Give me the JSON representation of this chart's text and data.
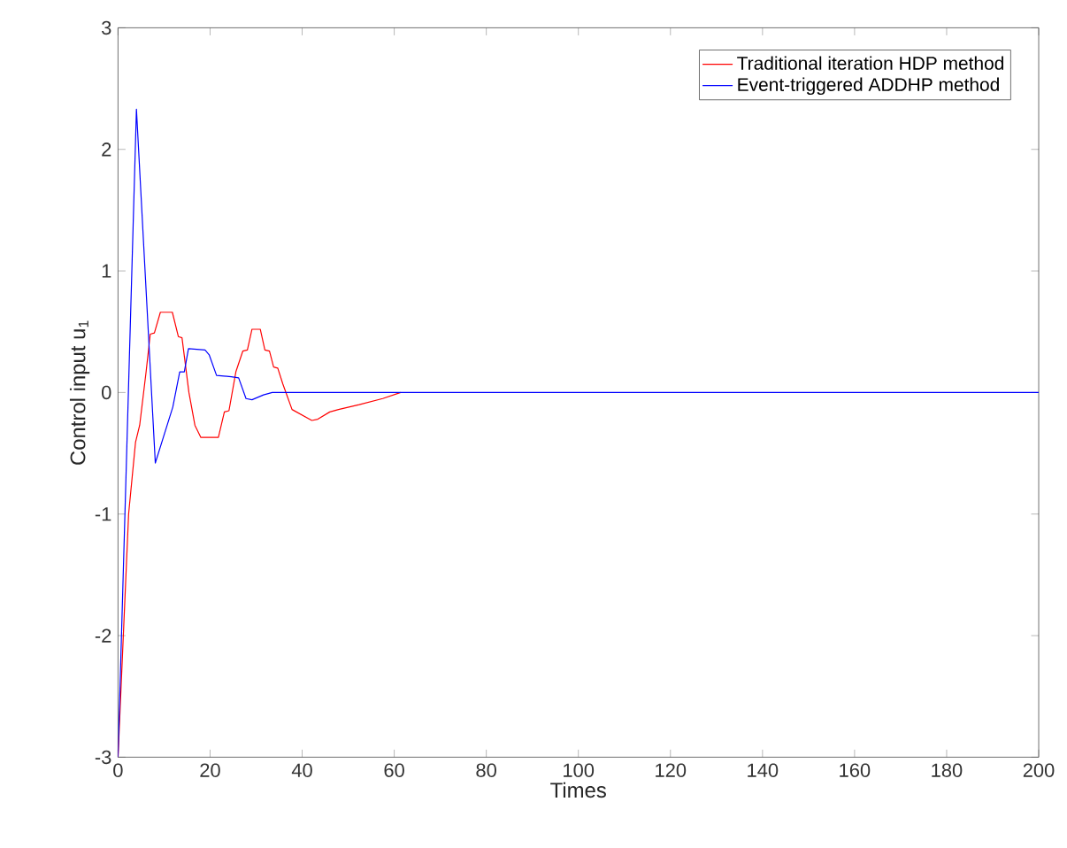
{
  "chart_data": {
    "type": "line",
    "xlabel": "Times",
    "ylabel": "Control  input  u$_{1}$",
    "xlim": [
      0,
      200
    ],
    "ylim": [
      -3,
      3
    ],
    "xticks": [
      0,
      20,
      40,
      60,
      80,
      100,
      120,
      140,
      160,
      180,
      200
    ],
    "yticks": [
      -3,
      -2,
      -1,
      0,
      1,
      2,
      3
    ],
    "grid": false,
    "legend": "top right",
    "line_style": "solid",
    "marker": "none",
    "series": [
      {
        "name": "Traditional iteration HDP method",
        "color": "#ff0000",
        "x": [
          0,
          2.3,
          3.8,
          4.7,
          6.1,
          7.0,
          7.9,
          9.2,
          11.8,
          13.1,
          13.9,
          15.4,
          16.7,
          18.0,
          21.8,
          23.1,
          24.1,
          25.6,
          27.1,
          28.1,
          29.1,
          30.9,
          31.9,
          32.9,
          33.8,
          34.7,
          35.8,
          37.8,
          42.1,
          43.4,
          46,
          47.9,
          52.4,
          57.5,
          61.4
        ],
        "values": [
          -3,
          -1.0,
          -0.41,
          -0.27,
          0.17,
          0.48,
          0.49,
          0.66,
          0.66,
          0.46,
          0.45,
          0.0,
          -0.27,
          -0.37,
          -0.37,
          -0.16,
          -0.15,
          0.17,
          0.34,
          0.35,
          0.52,
          0.52,
          0.35,
          0.34,
          0.21,
          0.2,
          0.07,
          -0.14,
          -0.23,
          -0.22,
          -0.16,
          -0.14,
          -0.1,
          -0.05,
          0
        ]
      },
      {
        "name": "Event-triggered ADDHP method",
        "color": "#0000ff",
        "x": [
          0,
          4,
          8.1,
          11.9,
          13.4,
          14.4,
          15.3,
          18.9,
          19.8,
          21.4,
          24.6,
          26.2,
          27.8,
          29.1,
          31.6,
          33.5,
          37.3,
          60,
          80,
          100,
          120,
          140,
          160,
          180,
          200
        ],
        "values": [
          -3,
          2.33,
          -0.58,
          -0.12,
          0.17,
          0.17,
          0.36,
          0.35,
          0.31,
          0.14,
          0.13,
          0.12,
          -0.05,
          -0.06,
          -0.02,
          0,
          0,
          0,
          0,
          0,
          0,
          0,
          0,
          0,
          0
        ]
      }
    ]
  }
}
